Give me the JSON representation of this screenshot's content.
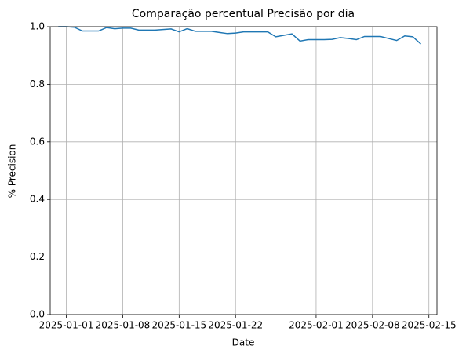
{
  "chart_data": {
    "type": "line",
    "title": "Comparação percentual Precisão por dia",
    "xlabel": "Date",
    "ylabel": "% Precision",
    "x": [
      "2024-12-31",
      "2025-01-01",
      "2025-01-02",
      "2025-01-03",
      "2025-01-04",
      "2025-01-05",
      "2025-01-06",
      "2025-01-07",
      "2025-01-08",
      "2025-01-09",
      "2025-01-10",
      "2025-01-11",
      "2025-01-12",
      "2025-01-13",
      "2025-01-14",
      "2025-01-15",
      "2025-01-16",
      "2025-01-17",
      "2025-01-18",
      "2025-01-19",
      "2025-01-20",
      "2025-01-21",
      "2025-01-22",
      "2025-01-23",
      "2025-01-24",
      "2025-01-25",
      "2025-01-26",
      "2025-01-27",
      "2025-01-28",
      "2025-01-29",
      "2025-01-30",
      "2025-01-31",
      "2025-02-01",
      "2025-02-02",
      "2025-02-03",
      "2025-02-04",
      "2025-02-05",
      "2025-02-06",
      "2025-02-07",
      "2025-02-08",
      "2025-02-09",
      "2025-02-10",
      "2025-02-11",
      "2025-02-12",
      "2025-02-13",
      "2025-02-14"
    ],
    "series": [
      {
        "name": "Precision",
        "color": "#1f77b4",
        "values": [
          1.0,
          1.0,
          0.998,
          0.985,
          0.985,
          0.985,
          0.997,
          0.993,
          0.995,
          0.995,
          0.988,
          0.988,
          0.988,
          0.99,
          0.992,
          0.982,
          0.993,
          0.984,
          0.984,
          0.984,
          0.98,
          0.976,
          0.978,
          0.982,
          0.982,
          0.982,
          0.982,
          0.965,
          0.97,
          0.975,
          0.95,
          0.955,
          0.955,
          0.955,
          0.956,
          0.962,
          0.959,
          0.955,
          0.966,
          0.966,
          0.966,
          0.959,
          0.952,
          0.968,
          0.965,
          0.94
        ]
      }
    ],
    "xlim": [
      "2024-12-30",
      "2025-02-16"
    ],
    "xticks": [
      "2025-01-01",
      "2025-01-08",
      "2025-01-15",
      "2025-01-22",
      "2025-02-01",
      "2025-02-08",
      "2025-02-15"
    ],
    "ylim": [
      0,
      1
    ],
    "yticks": [
      {
        "value": 0,
        "label": "0.0"
      },
      0.2,
      0.4,
      0.6,
      0.8,
      {
        "value": 1,
        "label": "1.0"
      }
    ],
    "grid": true
  }
}
